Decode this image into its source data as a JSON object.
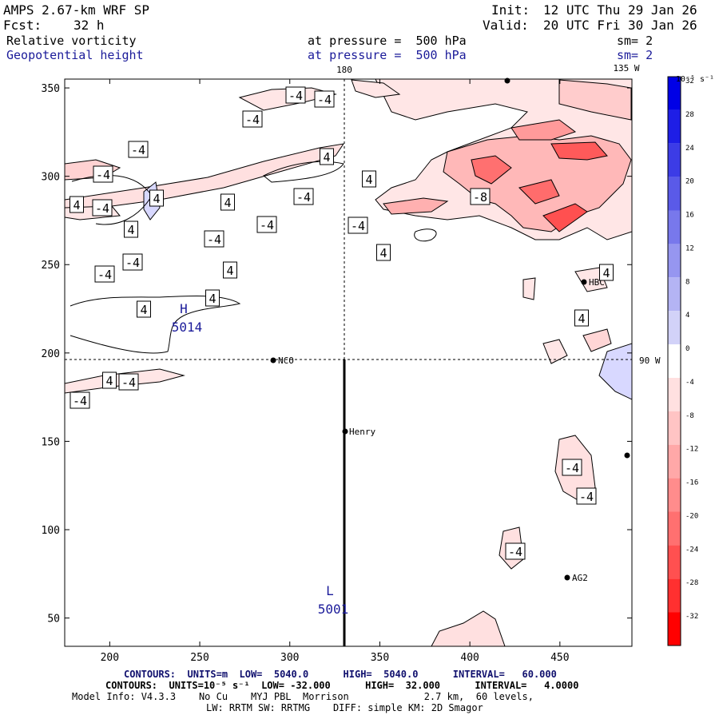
{
  "header": {
    "model": "AMPS 2.67-km WRF SP",
    "init_label": "Init:",
    "init_value": "12 UTC Thu 29 Jan 26",
    "fcst_label": "Fcst:",
    "fcst_value": "32 h",
    "valid_label": "Valid:",
    "valid_value": "20 UTC Fri 30 Jan 26",
    "field1": "Relative vorticity",
    "field1_level": "at pressure =  500 hPa",
    "field1_sm": "sm= 2",
    "field2": "Geopotential height",
    "field2_level": "at pressure =  500 hPa",
    "field2_sm": "sm= 2"
  },
  "map": {
    "x_ticks": [
      "200",
      "250",
      "300",
      "350",
      "400",
      "450"
    ],
    "y_ticks": [
      "350",
      "300",
      "250",
      "200",
      "150",
      "100",
      "50"
    ],
    "lon_180": "180",
    "lon_135w": "135 W",
    "lon_90w": "90 W",
    "stations": [
      {
        "name": "NCO"
      },
      {
        "name": "Henry"
      },
      {
        "name": "HBC"
      },
      {
        "name": "AG2"
      }
    ],
    "high": {
      "letter": "H",
      "value": "5014"
    },
    "low": {
      "letter": "L",
      "value": "5001"
    },
    "contour_labels": [
      "-4",
      "4",
      "-8"
    ]
  },
  "colorbar": {
    "units": "10⁻⁵ s⁻¹",
    "ticks": [
      "32",
      "28",
      "24",
      "20",
      "16",
      "12",
      "8",
      "4",
      "0",
      "-4",
      "-8",
      "-12",
      "-16",
      "-20",
      "-24",
      "-28",
      "-32"
    ],
    "colors": [
      "#0000e6",
      "#1e1ee6",
      "#3c3ce6",
      "#5a5ae8",
      "#7878ec",
      "#9696f0",
      "#b4b4f4",
      "#d2d2f8",
      "#ffffff",
      "#ffe0e0",
      "#ffc4c4",
      "#ffa8a8",
      "#ff8c8c",
      "#ff7070",
      "#ff5050",
      "#ff3030",
      "#ff0000"
    ]
  },
  "footer": {
    "contours1": "CONTOURS:  UNITS=m  LOW=  5040.0      HIGH=  5040.0      INTERVAL=   60.000",
    "contours2": "CONTOURS:  UNITS=10⁻⁵ s⁻¹  LOW= -32.000      HIGH=  32.000      INTERVAL=   4.0000",
    "model_info": "Model Info: V4.3.3    No Cu    MYJ PBL  Morrison             2.7 km,  60 levels,",
    "model_info2": "LW: RRTM SW: RRTMG    DIFF: simple KM: 2D Smagor"
  }
}
